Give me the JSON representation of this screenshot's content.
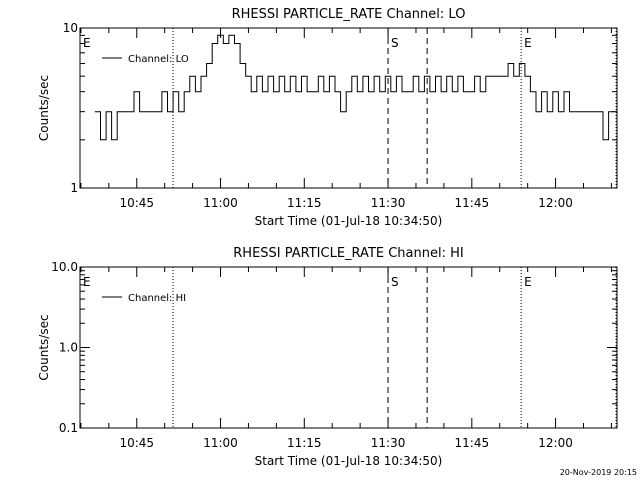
{
  "footer": {
    "timestamp": "20-Nov-2019 20:15"
  },
  "chart_data": [
    {
      "type": "line",
      "title": "RHESSI PARTICLE_RATE Channel: LO",
      "xlabel": "Start Time (01-Jul-18 10:34:50)",
      "ylabel": "Counts/sec",
      "yscale": "log",
      "ylim": [
        1,
        10
      ],
      "ytick_labels": [
        "1",
        "10"
      ],
      "xlim": [
        "10:34:50",
        "12:11:00"
      ],
      "xtick_labels": [
        "10:45",
        "11:00",
        "11:15",
        "11:30",
        "11:45",
        "12:00"
      ],
      "legend": {
        "placement": "top-left",
        "entries": [
          "Channel: LO"
        ]
      },
      "markers": [
        {
          "label": "E",
          "time": "10:34:50",
          "style": "dotted"
        },
        {
          "label": "",
          "time": "10:51:30",
          "style": "dotted"
        },
        {
          "label": "S",
          "time": "11:30:00",
          "style": "dashed"
        },
        {
          "label": "",
          "time": "11:37:00",
          "style": "dashed"
        },
        {
          "label": "E",
          "time": "11:53:50",
          "style": "dotted"
        },
        {
          "label": "",
          "time": "12:10:50",
          "style": "dotted"
        }
      ],
      "series": [
        {
          "name": "Channel: LO",
          "x": [
            "10:37:30",
            "10:38:30",
            "10:39:30",
            "10:40:30",
            "10:41:30",
            "10:42:30",
            "10:43:30",
            "10:44:30",
            "10:45:30",
            "10:46:30",
            "10:47:30",
            "10:48:30",
            "10:49:30",
            "10:50:30",
            "10:51:30",
            "10:52:30",
            "10:53:30",
            "10:54:30",
            "10:55:30",
            "10:56:30",
            "10:57:30",
            "10:58:30",
            "10:59:30",
            "11:00:30",
            "11:01:30",
            "11:02:30",
            "11:03:30",
            "11:04:30",
            "11:05:30",
            "11:06:30",
            "11:07:30",
            "11:08:30",
            "11:09:30",
            "11:10:30",
            "11:11:30",
            "11:12:30",
            "11:13:30",
            "11:14:30",
            "11:15:30",
            "11:16:30",
            "11:17:30",
            "11:18:30",
            "11:19:30",
            "11:20:30",
            "11:21:30",
            "11:22:30",
            "11:23:30",
            "11:24:30",
            "11:25:30",
            "11:26:30",
            "11:27:30",
            "11:28:30",
            "11:29:30",
            "11:30:30",
            "11:31:30",
            "11:32:30",
            "11:33:30",
            "11:34:30",
            "11:35:30",
            "11:36:30",
            "11:37:30",
            "11:38:30",
            "11:39:30",
            "11:40:30",
            "11:41:30",
            "11:42:30",
            "11:43:30",
            "11:44:30",
            "11:45:30",
            "11:46:30",
            "11:47:30",
            "11:48:30",
            "11:49:30",
            "11:50:30",
            "11:51:30",
            "11:52:30",
            "11:53:30",
            "11:54:30",
            "11:55:30",
            "11:56:30",
            "11:57:30",
            "11:58:30",
            "11:59:30",
            "12:00:30",
            "12:01:30",
            "12:02:30",
            "12:03:30",
            "12:04:30",
            "12:05:30",
            "12:06:30",
            "12:07:30",
            "12:08:30",
            "12:09:30",
            "12:10:30"
          ],
          "values": [
            3,
            2,
            3,
            2,
            3,
            3,
            3,
            4,
            3,
            3,
            3,
            3,
            4,
            3,
            4,
            3,
            4,
            5,
            4,
            5,
            6,
            8,
            9,
            8,
            9,
            8,
            6,
            5,
            4,
            5,
            4,
            5,
            4,
            5,
            4,
            5,
            4,
            5,
            4,
            4,
            5,
            4,
            5,
            4,
            3,
            4,
            5,
            4,
            5,
            4,
            5,
            4,
            5,
            4,
            5,
            4,
            4,
            5,
            4,
            5,
            4,
            5,
            4,
            5,
            4,
            5,
            4,
            4,
            5,
            4,
            5,
            5,
            5,
            5,
            6,
            5,
            6,
            5,
            4,
            3,
            4,
            3,
            4,
            3,
            4,
            3,
            3,
            3,
            3,
            3,
            3,
            2,
            3,
            3
          ],
          "color": "#000000"
        }
      ]
    },
    {
      "type": "line",
      "title": "RHESSI PARTICLE_RATE Channel: HI",
      "xlabel": "Start Time (01-Jul-18 10:34:50)",
      "ylabel": "Counts/sec",
      "yscale": "log",
      "ylim": [
        0.1,
        10
      ],
      "ytick_labels": [
        "0.1",
        "1.0",
        "10.0"
      ],
      "xlim": [
        "10:34:50",
        "12:11:00"
      ],
      "xtick_labels": [
        "10:45",
        "11:00",
        "11:15",
        "11:30",
        "11:45",
        "12:00"
      ],
      "legend": {
        "placement": "top-left",
        "entries": [
          "Channel: HI"
        ]
      },
      "markers": [
        {
          "label": "E",
          "time": "10:34:50",
          "style": "dotted"
        },
        {
          "label": "",
          "time": "10:51:30",
          "style": "dotted"
        },
        {
          "label": "S",
          "time": "11:30:00",
          "style": "dashed"
        },
        {
          "label": "",
          "time": "11:37:00",
          "style": "dashed"
        },
        {
          "label": "E",
          "time": "11:53:50",
          "style": "dotted"
        },
        {
          "label": "",
          "time": "12:10:50",
          "style": "dotted"
        }
      ],
      "series": [
        {
          "name": "Channel: HI",
          "x": [],
          "values": [],
          "color": "#000000"
        }
      ]
    }
  ]
}
